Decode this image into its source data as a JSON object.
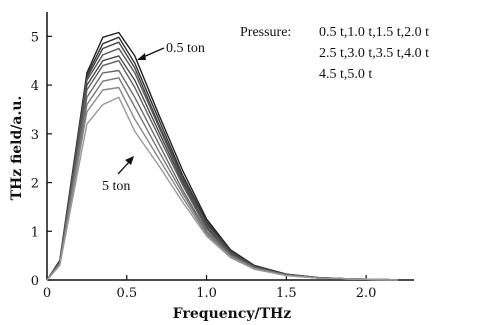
{
  "chart_data": {
    "type": "line",
    "xlabel": "Frequency/THz",
    "ylabel": "THz field/a.u.",
    "xlim": [
      0,
      2.3
    ],
    "ylim": [
      0,
      5.5
    ],
    "xticks": [
      "0",
      "0.5",
      "1.0",
      "1.5",
      "2.0"
    ],
    "xtick_values": [
      0,
      0.5,
      1.0,
      1.5,
      2.0
    ],
    "yticks": [
      "0",
      "1",
      "2",
      "3",
      "4",
      "5"
    ],
    "ytick_values": [
      0,
      1,
      2,
      3,
      4,
      5
    ],
    "grid": false,
    "legend": {
      "label": "Pressure:",
      "lines": [
        "0.5 t,1.0 t,1.5 t,2.0 t",
        "2.5 t,3.0 t,3.5 t,4.0 t",
        "4.5 t,5.0 t"
      ]
    },
    "annotations": [
      {
        "text": "0.5 ton"
      },
      {
        "text": "5 ton"
      }
    ],
    "x": [
      0,
      0.08,
      0.25,
      0.35,
      0.45,
      0.55,
      0.7,
      0.85,
      1.0,
      1.15,
      1.3,
      1.5,
      1.7,
      1.9,
      2.1,
      2.2
    ],
    "series": [
      {
        "color": "#222222",
        "values": [
          0,
          0.4,
          4.25,
          4.98,
          5.08,
          4.6,
          3.4,
          2.25,
          1.25,
          0.62,
          0.3,
          0.12,
          0.05,
          0.02,
          0.01,
          0.0
        ]
      },
      {
        "color": "#333333",
        "values": [
          0,
          0.38,
          4.2,
          4.85,
          4.98,
          4.45,
          3.3,
          2.15,
          1.2,
          0.6,
          0.29,
          0.12,
          0.05,
          0.02,
          0.01,
          0.0
        ]
      },
      {
        "color": "#444444",
        "values": [
          0,
          0.36,
          4.15,
          4.75,
          4.88,
          4.35,
          3.2,
          2.1,
          1.16,
          0.58,
          0.28,
          0.11,
          0.05,
          0.02,
          0.01,
          0.0
        ]
      },
      {
        "color": "#555555",
        "values": [
          0,
          0.36,
          4.1,
          4.62,
          4.75,
          4.25,
          3.15,
          2.05,
          1.12,
          0.56,
          0.27,
          0.11,
          0.05,
          0.02,
          0.01,
          0.0
        ]
      },
      {
        "color": "#4a4a4a",
        "values": [
          0,
          0.35,
          4.0,
          4.5,
          4.6,
          4.1,
          3.05,
          2.0,
          1.08,
          0.55,
          0.27,
          0.11,
          0.04,
          0.02,
          0.01,
          0.0
        ]
      },
      {
        "color": "#606060",
        "values": [
          0,
          0.35,
          3.9,
          4.4,
          4.5,
          3.95,
          2.95,
          1.95,
          1.05,
          0.53,
          0.26,
          0.1,
          0.04,
          0.02,
          0.01,
          0.0
        ]
      },
      {
        "color": "#6a6a6a",
        "values": [
          0,
          0.34,
          3.75,
          4.25,
          4.3,
          3.75,
          2.8,
          1.85,
          1.0,
          0.51,
          0.25,
          0.1,
          0.04,
          0.02,
          0.01,
          0.0
        ]
      },
      {
        "color": "#777777",
        "values": [
          0,
          0.33,
          3.6,
          4.08,
          4.15,
          3.55,
          2.65,
          1.78,
          0.97,
          0.5,
          0.24,
          0.1,
          0.04,
          0.02,
          0.01,
          0.0
        ]
      },
      {
        "color": "#888888",
        "values": [
          0,
          0.32,
          3.45,
          3.9,
          3.95,
          3.3,
          2.5,
          1.7,
          0.93,
          0.48,
          0.23,
          0.09,
          0.04,
          0.02,
          0.01,
          0.0
        ]
      },
      {
        "color": "#999999",
        "values": [
          0,
          0.3,
          3.2,
          3.6,
          3.75,
          3.05,
          2.35,
          1.6,
          0.9,
          0.46,
          0.22,
          0.09,
          0.04,
          0.02,
          0.01,
          0.0
        ]
      }
    ]
  }
}
